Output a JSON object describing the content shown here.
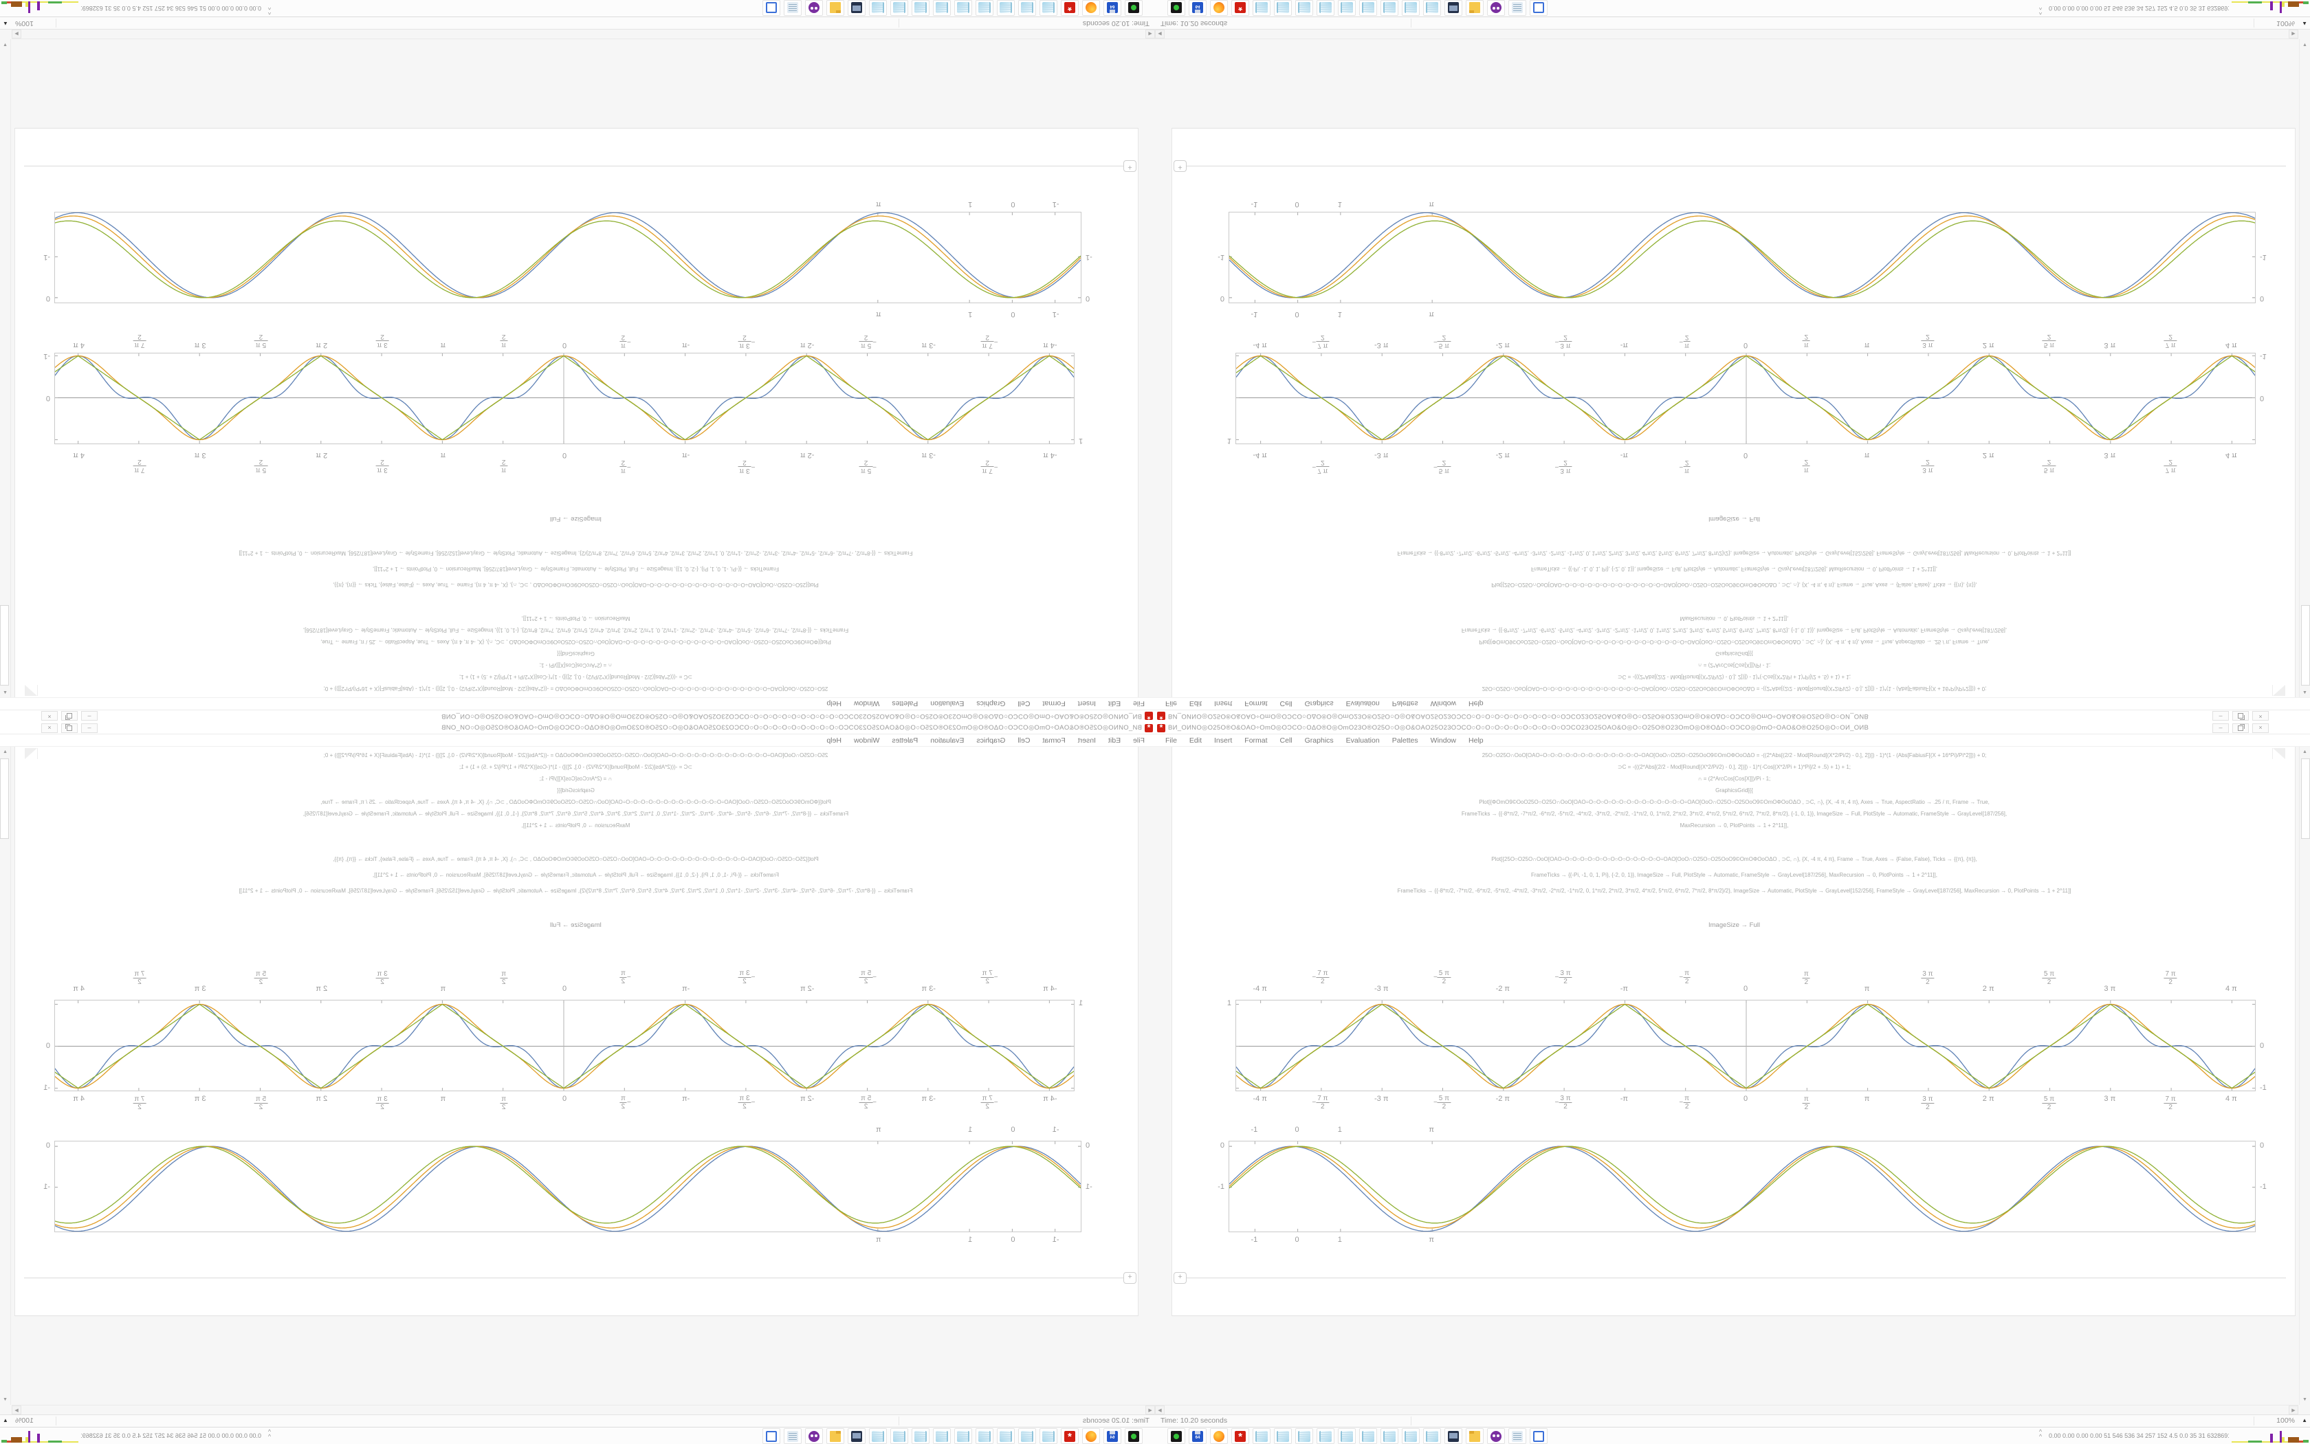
{
  "colors": {
    "series_blue": "#5e81b5",
    "series_orange": "#e19c24",
    "series_green": "#8fb032",
    "mathematica_red": "#d21e12",
    "plot_frame_gray": "#c9c9c9",
    "code_text_gray": "#a7a9a7",
    "sparkline": {
      "y": "#e8e553",
      "g": "#52b04f",
      "p": "#8021a8",
      "b": "#9c5718",
      "r": "#d24a2e"
    }
  },
  "composition": {
    "note": "screen is tiled 2x2: bottom-right normal, bottom-left mirrored horizontally, top-right mirrored vertically, top-left rotated 180"
  },
  "window": {
    "icon": "mathematica-spikey-icon",
    "title": "BИ_OИNO◎O25O®O&OAO÷OmO◎OƆCO○OΔO®O◎OmO23O®O25O○O◎O&OAO25O23OƆCO○O○O○O○O○O○O○O○O○O○OƆCO23O25OAO&O◎O○O25O®O23OmO◎O®OΔO○OƆCO◎OmO÷OAO&O®O25O◎O○OИ_OИB",
    "menu": [
      "File",
      "Edit",
      "Insert",
      "Format",
      "Cell",
      "Graphics",
      "Evaluation",
      "Palettes",
      "Window",
      "Help"
    ],
    "controls": {
      "minimize": "–",
      "restore": "",
      "close": "×"
    }
  },
  "notebook": {
    "code_block_1": [
      "25O○O25O∩OoO[OAO÷O○O○O○O○O○O○O○O○O○O○O○O○O÷OAO[OoO∩O25O○O25OoO9©OmOΦOoOΔO      = -((2*Abs[(2/2 - Mod[Round[(X*2/Pi/2) - 0.], 2])]) - 1)*(1 - (Abs[FabiusF[(X + 16*Pi)/Pi*2]])) + 0;",
      "⊃C = -(((2*Abs[(2/2 - Mod[Round[(X*2/Pi/2) - 0.], 2])]) - 1)*(-Cos[(X*2/Pi + 1)*Pi]/2 + .5) + 1) + 1;",
      "∩ = (2*ArcCos[Cos[X]])/Pi  - 1;",
      "GraphicsGrid[{{",
      "Plot[{ΦOmO9©OoO25O○O25O∩OoO[OAO÷O○O○O○O○O○O○O○O○O○O○O○O○O÷OAO[OoO∩O25O○O25OoO9©OmOΦOoOΔO , ⊃C, ∩}, {X, -4 π, 4 π}, Axes → True, AspectRatio → .25 / π, Frame → True,",
      "FrameTicks → {{-8*π/2, -7*π/2, -6*π/2, -5*π/2, -4*π/2, -3*π/2, -2*π/2, -1*π/2, 0, 1*π/2, 2*π/2, 3*π/2, 4*π/2, 5*π/2, 6*π/2, 7*π/2, 8*π/2}, {-1, 0, 1}}, ImageSize → Full, PlotStyle → Automatic, FrameStyle → GrayLevel[187/256],",
      "MaxRecursion → 0, PlotPoints → 1 + 2^11]],"
    ],
    "code_block_2": [
      "Plot[{25O○O25O∩OoO[OAO÷O○O○O○O○O○O○O○O○O○O○O○O○O÷OAO[OoO∩O25O○O25OoO9©OmOΦOoOΔO , ⊃C, ∩}, {X, -4 π, 4 π}, Frame → True, Axes → {False, False}, Ticks → {{π}, {π}},",
      "FrameTicks → {{-Pi, -1, 0, 1, Pi}, {-2, 0, 1}}, ImageSize → Full, PlotStyle → Automatic, FrameStyle → GrayLevel[187/256], MaxRecursion → 0, PlotPoints → 1 + 2^11]],",
      "FrameTicks → {{-8*π/2, -7*π/2, -6*π/2, -5*π/2, -4*π/2, -3*π/2, -2*π/2, -1*π/2, 0, 1*π/2, 2*π/2, 3*π/2, 4*π/2, 5*π/2, 6*π/2, 7*π/2, 8*π/2}/2}, ImageSize → Automatic, PlotStyle → GrayLevel[152/256], FrameStyle → GrayLevel[187/256], MaxRecursion → 0, PlotPoints → 1 + 2^11]]"
    ],
    "caption": "ImageSize → Full",
    "insert_button_label": "+"
  },
  "chart_data": [
    {
      "type": "line",
      "title": "",
      "x_range": [
        -13.2,
        13.2
      ],
      "y_range": [
        -1.09,
        1.09
      ],
      "y_data_range": [
        -1,
        1
      ],
      "frame": true,
      "axes": true,
      "grid": false,
      "legend": "none",
      "description": "three braided waves, period 2 pi, peaks +1 at odd multiples of pi, troughs -1 at even multiples; labels on all four sides",
      "x_ticks": [
        {
          "v": -12.566,
          "label": "-4 π"
        },
        {
          "v": -10.996,
          "frac": {
            "neg": true,
            "num": "7 π",
            "den": "2"
          }
        },
        {
          "v": -9.4248,
          "label": "-3 π"
        },
        {
          "v": -7.854,
          "frac": {
            "neg": true,
            "num": "5 π",
            "den": "2"
          }
        },
        {
          "v": -6.2832,
          "label": "-2 π"
        },
        {
          "v": -4.7124,
          "frac": {
            "neg": true,
            "num": "3 π",
            "den": "2"
          }
        },
        {
          "v": -3.1416,
          "label": "-π"
        },
        {
          "v": -1.5708,
          "frac": {
            "neg": true,
            "num": "π",
            "den": "2"
          }
        },
        {
          "v": 0,
          "label": "0"
        },
        {
          "v": 1.5708,
          "frac": {
            "num": "π",
            "den": "2"
          }
        },
        {
          "v": 3.1416,
          "label": "π"
        },
        {
          "v": 4.7124,
          "frac": {
            "num": "3 π",
            "den": "2"
          }
        },
        {
          "v": 6.2832,
          "label": "2 π"
        },
        {
          "v": 7.854,
          "frac": {
            "num": "5 π",
            "den": "2"
          }
        },
        {
          "v": 9.4248,
          "label": "3 π"
        },
        {
          "v": 10.996,
          "frac": {
            "num": "7 π",
            "den": "2"
          }
        },
        {
          "v": 12.566,
          "label": "4 π"
        }
      ],
      "y_ticks_left": [
        {
          "v": 1,
          "label": "1"
        }
      ],
      "y_ticks_right": [
        {
          "v": 0,
          "label": "0"
        },
        {
          "v": -1,
          "label": "-1"
        }
      ],
      "series": [
        {
          "key": "sq",
          "name": "obfuscated FabiusF wave",
          "color": "#5e81b5",
          "formula": "-((2 Abs[(2/2 - Mod[Round[(X 2/Pi/2) - 0.], 2])]) - 1)(1 - Abs[FabiusF[(X + 16 Pi)/Pi 2]])"
        },
        {
          "key": "mid",
          "name": "⊃C",
          "color": "#e19c24",
          "formula": "-(((2 Abs[(2/2 - Mod[Round[(X 2/Pi/2) - 0.], 2])]) - 1)(-Cos[(X 2/Pi + 1) Pi]/2 + .5) + 1) + 1"
        },
        {
          "key": "tri",
          "name": "∩",
          "color": "#8fb032",
          "formula": "(2 ArcCos[Cos[X]])/Pi - 1"
        }
      ]
    },
    {
      "type": "line",
      "title": "",
      "x_range": [
        -1.6,
        22.4
      ],
      "y_range": [
        -2.12,
        0.12
      ],
      "y_data_range": [
        -2,
        0
      ],
      "frame": true,
      "axes": false,
      "grid": false,
      "legend": "none",
      "description": "overlapping phase-shifted cosine arches descending from 0 to -2, about 3.5 periods",
      "x_ticks": [
        {
          "v": -1,
          "label": "-1"
        },
        {
          "v": 0,
          "label": "0"
        },
        {
          "v": 1,
          "label": "1"
        },
        {
          "v": 3.1416,
          "label": "π"
        }
      ],
      "y_ticks_left": [
        {
          "v": 0,
          "label": "0"
        },
        {
          "v": -1,
          "label": "-1"
        }
      ],
      "y_ticks_right": [
        {
          "v": 0,
          "label": "0"
        },
        {
          "v": -1,
          "label": "-1"
        }
      ],
      "series": [
        {
          "key": "c1",
          "name": "wave 1",
          "color": "#5e81b5",
          "formula": "1.04 (Cos[X + 0.14] - 1)"
        },
        {
          "key": "c2",
          "name": "wave 2",
          "color": "#e19c24",
          "formula": "1.00 (Cos[X + 0.05] - 1)"
        },
        {
          "key": "c3",
          "name": "wave 3",
          "color": "#8fb032",
          "formula": "0.94 (Cos[X - 0.06] - 1)"
        }
      ]
    }
  ],
  "statusbar": {
    "time_label": "Time: 10.20 seconds",
    "zoom_value": "100%"
  },
  "taskbar": {
    "launch_icons": [
      {
        "kind": "gpu",
        "name": "gpu-utility-icon"
      },
      {
        "kind": "floppy",
        "name": "floppy-64-icon",
        "label": "64"
      },
      {
        "kind": "firefox",
        "name": "firefox-icon"
      },
      {
        "kind": "mma",
        "name": "mathematica-icon",
        "label": "*"
      },
      {
        "kind": "notepad",
        "name": "notepad-icon-1"
      },
      {
        "kind": "notepad",
        "name": "notepad-icon-2"
      },
      {
        "kind": "notepad",
        "name": "notepad-icon-3"
      },
      {
        "kind": "notepad",
        "name": "notepad-icon-4"
      },
      {
        "kind": "notepad",
        "name": "notepad-icon-5"
      },
      {
        "kind": "notepad",
        "name": "notepad-icon-6"
      },
      {
        "kind": "notepad",
        "name": "notepad-icon-7"
      },
      {
        "kind": "notepad",
        "name": "notepad-icon-8"
      },
      {
        "kind": "notepad",
        "name": "notepad-icon-9"
      },
      {
        "kind": "monitor",
        "name": "monitor-camera-icon"
      },
      {
        "kind": "folder",
        "name": "folder-icon"
      },
      {
        "kind": "owl",
        "name": "owl-app-icon"
      },
      {
        "kind": "scroll",
        "name": "document-scroll-icon"
      },
      {
        "kind": "frame",
        "name": "window-frame-icon"
      }
    ],
    "overflow_chevron": "^",
    "stats_text": "0.00 0.00 0.00 0.00    51    546 536    34    257 152    4.5    0.0    35    31    63286910",
    "sparkline": [
      {
        "w": 24,
        "h": 2,
        "c": "y"
      },
      {
        "w": 20,
        "h": 3,
        "c": "g"
      },
      {
        "w": 12,
        "h": 2,
        "c": "y"
      },
      {
        "w": 4,
        "h": 13,
        "c": "p"
      },
      {
        "w": 10,
        "h": 2,
        "c": "y"
      },
      {
        "w": 3,
        "h": 17,
        "c": "p"
      },
      {
        "w": 4,
        "h": 8,
        "c": "y"
      },
      {
        "w": 5,
        "h": 2,
        "c": "y"
      },
      {
        "w": 16,
        "h": 8,
        "c": "b"
      },
      {
        "w": 6,
        "h": 3,
        "c": "r"
      },
      {
        "w": 8,
        "h": 4,
        "c": "g"
      }
    ]
  }
}
